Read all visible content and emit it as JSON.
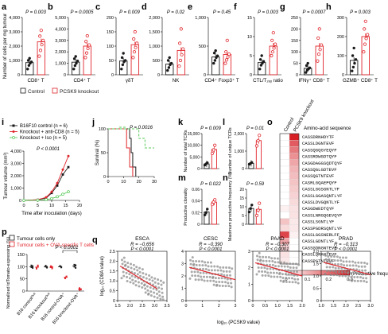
{
  "colors": {
    "control": "#1a1a1a",
    "ko": "#e0252b",
    "ko_cd8": "#f08a8a",
    "green": "#57c957",
    "grey": "#8c8c8c"
  },
  "legend_top": {
    "control": "Control",
    "ko": "PCSK9 knockout"
  },
  "panels_top": [
    {
      "letter": "a",
      "p": "P = 0.003",
      "xlabel": "CD8⁺ T",
      "ylabel": "Number of cells per mg tumour",
      "ylim": [
        0,
        4000
      ],
      "yticks": [
        "0",
        "1,000",
        "2,000",
        "3,000",
        "4,000"
      ],
      "ctrl": [
        400,
        650,
        800,
        900,
        1000,
        1150
      ],
      "ko": [
        1300,
        1700,
        2100,
        2400,
        2700,
        3100
      ],
      "ctrl_mean": 850,
      "ko_mean": 2300
    },
    {
      "letter": "b",
      "p": "P = 0.0005",
      "xlabel": "CD4⁺ T",
      "ylabel": "",
      "ylim": [
        0,
        5000
      ],
      "yticks": [
        "0",
        "1,000",
        "2,000",
        "3,000",
        "4,000",
        "5,000"
      ],
      "ctrl": [
        500,
        800,
        1000,
        1200,
        1400,
        1600
      ],
      "ko": [
        1500,
        1900,
        2300,
        2600,
        2900,
        3400
      ],
      "ctrl_mean": 1100,
      "ko_mean": 2500
    },
    {
      "letter": "c",
      "p": "P = 0.009",
      "xlabel": "γδT",
      "ylabel": "",
      "ylim": [
        0,
        200
      ],
      "yticks": [
        "0",
        "50",
        "100",
        "150",
        "200"
      ],
      "ctrl": [
        20,
        35,
        45,
        50,
        60,
        75
      ],
      "ko": [
        60,
        80,
        95,
        110,
        125,
        150
      ],
      "ctrl_mean": 48,
      "ko_mean": 105
    },
    {
      "letter": "d",
      "p": "P = 0.02",
      "xlabel": "NK",
      "ylabel": "",
      "ylim": [
        0,
        2000
      ],
      "yticks": [
        "0",
        "500",
        "1,000",
        "1,500",
        "2,000"
      ],
      "ctrl": [
        150,
        250,
        350,
        400,
        500,
        600
      ],
      "ko": [
        300,
        500,
        700,
        900,
        1100,
        1600
      ],
      "ctrl_mean": 370,
      "ko_mean": 850
    },
    {
      "letter": "e",
      "p": "P = 0.45",
      "xlabel": "CD4⁺ Foxp3⁺ T",
      "ylabel": "",
      "ylim": [
        0,
        1000
      ],
      "yticks": [
        "0",
        "500",
        "1,000"
      ],
      "ctrl": [
        200,
        250,
        300,
        330,
        380,
        420
      ],
      "ko": [
        200,
        260,
        310,
        360,
        400,
        600
      ],
      "ctrl_mean": 310,
      "ko_mean": 355
    },
    {
      "letter": "f",
      "p": "P = 0.003",
      "xlabel": "CTL/T₂ₑᵧ ratio",
      "ylabel": "",
      "ylim": [
        0,
        15
      ],
      "yticks": [
        "0",
        "5",
        "10",
        "15"
      ],
      "ctrl": [
        1.5,
        2.5,
        3,
        3.5,
        4,
        5
      ],
      "ko": [
        5,
        6,
        7,
        8,
        9,
        11
      ],
      "ctrl_mean": 3.2,
      "ko_mean": 7.5
    },
    {
      "letter": "g",
      "p": "P = 0.0007",
      "xlabel": "IFNγ⁺ CD8⁺ T",
      "ylabel": "",
      "ylim": [
        0,
        250
      ],
      "yticks": [
        "0",
        "50",
        "100",
        "150",
        "200",
        "250"
      ],
      "ctrl": [
        10,
        20,
        25,
        30,
        40,
        50
      ],
      "ko": [
        60,
        90,
        110,
        130,
        160,
        200
      ],
      "ctrl_mean": 28,
      "ko_mean": 125
    },
    {
      "letter": "h",
      "p": "P = 0.003",
      "xlabel": "GZMB⁺ CD8⁺ T",
      "ylabel": "",
      "ylim": [
        0,
        300
      ],
      "yticks": [
        "0",
        "100",
        "200",
        "300"
      ],
      "ctrl": [
        20,
        40,
        60,
        80,
        100,
        140
      ],
      "ko": [
        120,
        160,
        190,
        210,
        240,
        280
      ],
      "ctrl_mean": 75,
      "ko_mean": 200
    }
  ],
  "panel_i": {
    "letter": "i",
    "legend": [
      "B16F10 control (n = 6)",
      "Knockout + anti-CD8 (n = 5)",
      "Knockout + Iso (n = 5)"
    ],
    "p": "P < 0.0001",
    "xlabel": "Time after inoculation (days)",
    "ylabel": "Tumour volume (mm³)",
    "xticks": [
      "0",
      "5",
      "10",
      "15",
      "20"
    ],
    "yticks": [
      "0",
      "1,000",
      "2,000",
      "3,000",
      "4,000"
    ],
    "chart_data": {
      "type": "line",
      "x": [
        0,
        5,
        8,
        10,
        12,
        14,
        16
      ],
      "ylim": [
        0,
        4000
      ],
      "series": [
        {
          "name": "B16F10 control (n = 6)",
          "values": [
            0,
            50,
            200,
            600,
            1200,
            2100,
            2700
          ]
        },
        {
          "name": "Knockout + anti-CD8 (n = 5)",
          "values": [
            0,
            60,
            250,
            700,
            1400,
            2500,
            3600
          ]
        },
        {
          "name": "Knockout + Iso (n = 5)",
          "values": [
            0,
            20,
            60,
            150,
            300,
            500,
            700
          ]
        }
      ]
    }
  },
  "panel_j": {
    "letter": "j",
    "p": "P = 0.0016",
    "xlabel": "",
    "ylabel": "Survival (%)",
    "xticks": [
      "0",
      "10",
      "20",
      "30"
    ],
    "yticks": [
      "0",
      "50",
      "100"
    ],
    "chart_data": {
      "type": "line",
      "series": [
        {
          "name": "B16F10 control (n = 6)",
          "x": [
            0,
            14,
            14,
            15,
            15,
            16,
            16,
            18,
            18
          ],
          "y": [
            100,
            100,
            80,
            80,
            50,
            50,
            20,
            20,
            0
          ]
        },
        {
          "name": "Knockout + anti-CD8 (n = 5)",
          "x": [
            0,
            12,
            12,
            14,
            14,
            16,
            16
          ],
          "y": [
            100,
            100,
            60,
            60,
            20,
            20,
            0
          ]
        },
        {
          "name": "Knockout + Iso (n = 5)",
          "x": [
            0,
            20,
            20,
            24,
            24,
            30
          ],
          "y": [
            100,
            100,
            80,
            80,
            60,
            60
          ]
        }
      ]
    }
  },
  "panel_k": {
    "letter": "k",
    "p": "P = 0.009",
    "ylabel": "Number of total TCRs",
    "ylim": [
      0,
      15000
    ],
    "yticks": [
      "0",
      "5,000",
      "10,000",
      "15,000"
    ],
    "ctrl": [
      1500,
      2000,
      2500
    ],
    "ko": [
      6500,
      8000,
      10000
    ],
    "ctrl_mean": 2000,
    "ko_mean": 8200
  },
  "panel_l": {
    "letter": "l",
    "p": "P = 0.01",
    "ylabel": "Number of unique TCRs",
    "ylim": [
      0,
      2000
    ],
    "yticks": [
      "0",
      "1,000",
      "2,000"
    ],
    "ctrl": [
      250,
      300,
      350
    ],
    "ko": [
      1300,
      1600,
      1900
    ],
    "ctrl_mean": 300,
    "ko_mean": 1600
  },
  "panel_m": {
    "letter": "m",
    "p": "P = 0.022",
    "ylabel": "Productive clonality",
    "ylim": [
      0,
      0.06
    ],
    "yticks": [
      "0",
      "0.02",
      "0.04",
      "0.06"
    ],
    "ctrl": [
      0.016,
      0.02,
      0.026
    ],
    "ko": [
      0.034,
      0.038,
      0.042
    ],
    "ctrl_mean": 0.021,
    "ko_mean": 0.038
  },
  "panel_n": {
    "letter": "n",
    "p": "P = 0.59",
    "ylabel": "Maximum productive frequency (%)",
    "ylim": [
      0,
      20
    ],
    "yticks": [
      "0",
      "5",
      "10",
      "15",
      "20"
    ],
    "ctrl": [
      7,
      9,
      11
    ],
    "ko": [
      5,
      8,
      12
    ],
    "ctrl_mean": 9,
    "ko_mean": 8.5
  },
  "panel_o": {
    "letter": "o",
    "col_labels": [
      "Control",
      "PCSK9 knockout"
    ],
    "header": "Amino-acid sequence",
    "sequences": [
      "CASSDRNHDYTF",
      "CASSLDGNTEVF",
      "CASSQGQGYEQYF",
      "CASSRDWGDTQYF",
      "CASGDAGGSQDTQYF",
      "CASSQGLGDTEVF",
      "CASSQGTNTEVF",
      "CASRLGQAEPQYF",
      "CASSLGGSGNTLYF",
      "CASSLGGASQNTLYF",
      "CASSLDVGQNTLYF",
      "CASGDWEDTQYF",
      "CASSLNRGQGEVQYF",
      "CASSLSGNTLYF",
      "CASSPGDRSQNTLYF",
      "CASSLGGSNERLFF",
      "CASSLGDNTLYF",
      "CASSGDNGNTEVF",
      "CASSLQRANTEVF",
      "CASSPGTNTEVF"
    ],
    "colorbar_ticks": [
      "0",
      "0.1",
      "0.2",
      "0.3"
    ],
    "colorbar_label": "(Productive frequency)",
    "chart_data": {
      "type": "heatmap",
      "columns": [
        "Control",
        "PCSK9 knockout"
      ],
      "values": [
        [
          0.0,
          0.32
        ],
        [
          0.0,
          0.22
        ],
        [
          0.0,
          0.18
        ],
        [
          0.0,
          0.15
        ],
        [
          0.0,
          0.12
        ],
        [
          0.0,
          0.1
        ],
        [
          0.0,
          0.09
        ],
        [
          0.0,
          0.08
        ],
        [
          0.0,
          0.07
        ],
        [
          0.0,
          0.06
        ],
        [
          0.0,
          0.05
        ],
        [
          0.02,
          0.04
        ],
        [
          0.0,
          0.04
        ],
        [
          0.08,
          0.03
        ],
        [
          0.05,
          0.03
        ],
        [
          0.25,
          0.02
        ],
        [
          0.12,
          0.0
        ],
        [
          0.06,
          0.0
        ],
        [
          0.04,
          0.0
        ],
        [
          0.03,
          0.0
        ]
      ],
      "vmin": 0,
      "vmax": 0.3
    }
  },
  "panel_p": {
    "letter": "p",
    "legend": [
      "Tumour cells only",
      "Tumour cells + OVA-specific T cells"
    ],
    "p": "P < 0.0001",
    "ylabel": "Normalized tdTomato-expressing (%)",
    "yticks": [
      "0",
      "50",
      "100",
      "150"
    ],
    "categories": [
      "B16 controlᴼᵛᴬ",
      "B16 knockoutᴼᵛᴬ",
      "B16 control-OVA⁺",
      "B16 knockout-OVA⁺"
    ],
    "chart_data": {
      "type": "scatter",
      "ylim": [
        0,
        150
      ],
      "series": [
        {
          "name": "Tumour cells only",
          "values": [
            [
              98,
              102,
              105,
              95
            ],
            [
              100,
              96,
              104,
              99
            ],
            [
              101,
              97,
              103,
              99
            ],
            [
              100,
              95,
              108,
              106
            ]
          ]
        },
        {
          "name": "Tumour cells + OVA-specific T cells",
          "values": [
            [
              95,
              100,
              92,
              105
            ],
            [
              98,
              93,
              102,
              99
            ],
            [
              55,
              60,
              52,
              58
            ],
            [
              5,
              8,
              12,
              6
            ]
          ]
        }
      ]
    }
  },
  "panel_q": {
    "letter": "q",
    "ylabel": "log₁₀ (CD8A value)",
    "xlabel": "log₁₀ (PCSK9 value)",
    "plots": [
      {
        "name": "ESCA",
        "r": "R = −0.656",
        "p": "P < 0.0001",
        "xticks": [
          "1.5",
          "2.0",
          "2.5",
          "3.0",
          "3.5"
        ],
        "yticks": [
          "0",
          "0.5",
          "1.0",
          "1.5",
          "2.0",
          "2.5"
        ],
        "xlim": [
          1.5,
          3.5
        ],
        "ylim": [
          0,
          2.5
        ],
        "line": [
          [
            1.6,
            1.75
          ],
          [
            3.1,
            0.6
          ]
        ]
      },
      {
        "name": "CESC",
        "r": "R = −0.390",
        "p": "P < 0.0001",
        "xticks": [
          "0",
          "1",
          "2",
          "3"
        ],
        "yticks": [
          "0",
          "1",
          "2",
          "3",
          "4"
        ],
        "xlim": [
          0,
          3
        ],
        "ylim": [
          0,
          4
        ],
        "line": [
          [
            0.2,
            2.7
          ],
          [
            3.0,
            1.7
          ]
        ]
      },
      {
        "name": "PAAD",
        "r": "R = −0.307",
        "p": "P < 0.0001",
        "xticks": [
          "0",
          "0.5",
          "1.0",
          "1.5",
          "2.0"
        ],
        "yticks": [
          "0",
          "1",
          "2",
          "3"
        ],
        "xlim": [
          0,
          2
        ],
        "ylim": [
          0,
          3
        ],
        "line": [
          [
            0.1,
            2.3
          ],
          [
            2.0,
            1.5
          ]
        ]
      },
      {
        "name": "PRAD",
        "r": "R = −0.313",
        "p": "P < 0.0001",
        "xticks": [
          "1.0",
          "1.5",
          "2.0",
          "2.5",
          "3.0"
        ],
        "yticks": [
          "0",
          "0.5",
          "1.0",
          "1.5",
          "2.0"
        ],
        "xlim": [
          1,
          3
        ],
        "ylim": [
          0,
          2
        ],
        "line": [
          [
            1.1,
            1.55
          ],
          [
            3.0,
            1.05
          ]
        ]
      }
    ]
  }
}
